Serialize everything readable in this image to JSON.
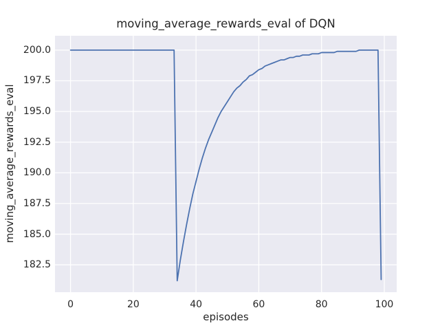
{
  "chart_data": {
    "type": "line",
    "title": "moving_average_rewards_eval of DQN",
    "xlabel": "episodes",
    "ylabel": "moving_average_rewards_eval",
    "x_ticks": [
      0,
      20,
      40,
      60,
      80,
      100
    ],
    "y_ticks": [
      182.5,
      185.0,
      187.5,
      190.0,
      192.5,
      195.0,
      197.5,
      200.0
    ],
    "xlim": [
      -4.95,
      103.95
    ],
    "ylim": [
      180.27,
      201.17
    ],
    "grid": true,
    "legend": false,
    "style": "seaborn-darkgrid",
    "colors": {
      "line": "#4C72B0",
      "plot_background": "#EAEAF2",
      "gridline": "#FFFFFF",
      "figure_background": "#FFFFFF",
      "text": "#262626"
    },
    "series": [
      {
        "name": "moving_average_rewards_eval",
        "x": [
          0,
          1,
          2,
          3,
          4,
          5,
          6,
          7,
          8,
          9,
          10,
          11,
          12,
          13,
          14,
          15,
          16,
          17,
          18,
          19,
          20,
          21,
          22,
          23,
          24,
          25,
          26,
          27,
          28,
          29,
          30,
          31,
          32,
          33,
          34,
          35,
          36,
          37,
          38,
          39,
          40,
          41,
          42,
          43,
          44,
          45,
          46,
          47,
          48,
          49,
          50,
          51,
          52,
          53,
          54,
          55,
          56,
          57,
          58,
          59,
          60,
          61,
          62,
          63,
          64,
          65,
          66,
          67,
          68,
          69,
          70,
          71,
          72,
          73,
          74,
          75,
          76,
          77,
          78,
          79,
          80,
          81,
          82,
          83,
          84,
          85,
          86,
          87,
          88,
          89,
          90,
          91,
          92,
          93,
          94,
          95,
          96,
          97,
          98,
          99
        ],
        "y": [
          200.0,
          200.0,
          200.0,
          200.0,
          200.0,
          200.0,
          200.0,
          200.0,
          200.0,
          200.0,
          200.0,
          200.0,
          200.0,
          200.0,
          200.0,
          200.0,
          200.0,
          200.0,
          200.0,
          200.0,
          200.0,
          200.0,
          200.0,
          200.0,
          200.0,
          200.0,
          200.0,
          200.0,
          200.0,
          200.0,
          200.0,
          200.0,
          200.0,
          200.0,
          181.2,
          182.9,
          184.4,
          185.8,
          187.1,
          188.3,
          189.3,
          190.3,
          191.2,
          192.0,
          192.7,
          193.3,
          193.9,
          194.5,
          195.0,
          195.4,
          195.8,
          196.2,
          196.6,
          196.9,
          197.1,
          197.4,
          197.6,
          197.9,
          198.0,
          198.2,
          198.4,
          198.5,
          198.7,
          198.8,
          198.9,
          199.0,
          199.1,
          199.2,
          199.2,
          199.3,
          199.4,
          199.4,
          199.5,
          199.5,
          199.6,
          199.6,
          199.6,
          199.7,
          199.7,
          199.7,
          199.8,
          199.8,
          199.8,
          199.8,
          199.8,
          199.9,
          199.9,
          199.9,
          199.9,
          199.9,
          199.9,
          199.9,
          200.0,
          200.0,
          200.0,
          200.0,
          200.0,
          200.0,
          200.0,
          181.3
        ]
      }
    ]
  }
}
